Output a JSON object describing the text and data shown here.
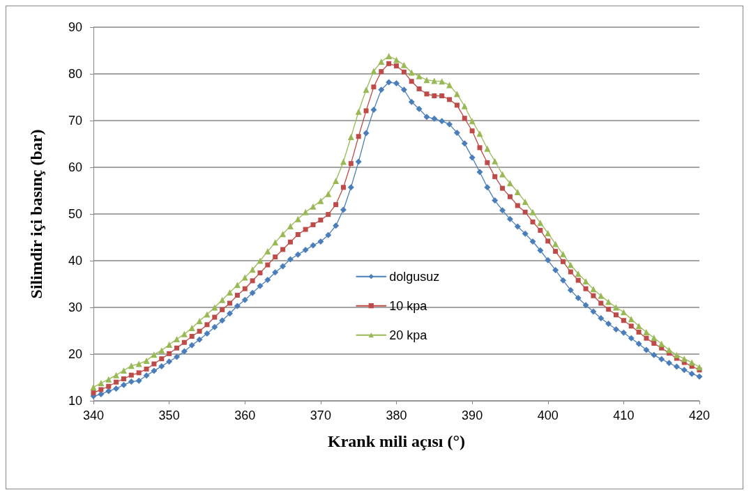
{
  "chart_data": {
    "type": "line",
    "xlabel": "Krank mili açısı (°)",
    "ylabel": "Silimdir içi basınç (bar)",
    "x": [
      340,
      341,
      342,
      343,
      344,
      345,
      346,
      347,
      348,
      349,
      350,
      351,
      352,
      353,
      354,
      355,
      356,
      357,
      358,
      359,
      360,
      361,
      362,
      363,
      364,
      365,
      366,
      367,
      368,
      369,
      370,
      371,
      372,
      373,
      374,
      375,
      376,
      377,
      378,
      379,
      380,
      381,
      382,
      383,
      384,
      385,
      386,
      387,
      388,
      389,
      390,
      391,
      392,
      393,
      394,
      395,
      396,
      397,
      398,
      399,
      400,
      401,
      402,
      403,
      404,
      405,
      406,
      407,
      408,
      409,
      410,
      411,
      412,
      413,
      414,
      415,
      416,
      417,
      418,
      419,
      420
    ],
    "series": [
      {
        "name": "dolgusuz",
        "color": "#4a7ebb",
        "marker": "diamond",
        "values": [
          11.0,
          11.4,
          12.1,
          12.6,
          13.4,
          14.1,
          14.3,
          15.4,
          16.4,
          17.4,
          18.4,
          19.4,
          20.6,
          21.9,
          23.1,
          24.4,
          25.8,
          27.2,
          28.7,
          30.3,
          31.6,
          33.1,
          34.6,
          35.9,
          37.5,
          38.8,
          40.3,
          41.3,
          42.3,
          43.3,
          44.1,
          45.5,
          47.5,
          50.9,
          55.7,
          61.2,
          67.3,
          72.3,
          76.6,
          78.2,
          78.0,
          76.6,
          74.0,
          72.5,
          70.8,
          70.4,
          69.9,
          69.2,
          67.4,
          65.1,
          62.1,
          59.0,
          55.7,
          52.9,
          50.8,
          48.9,
          47.3,
          45.8,
          44.1,
          42.2,
          40.1,
          38.0,
          35.8,
          33.7,
          32.0,
          30.5,
          29.1,
          27.7,
          26.5,
          25.3,
          24.6,
          23.4,
          22.2,
          20.9,
          19.8,
          18.9,
          18.1,
          17.3,
          16.6,
          15.8,
          15.2
        ]
      },
      {
        "name": "10 kpa",
        "color": "#be4b48",
        "marker": "square",
        "values": [
          11.7,
          12.4,
          13.1,
          14.0,
          14.7,
          15.5,
          16.0,
          16.8,
          17.9,
          19.0,
          20.1,
          21.3,
          22.5,
          23.8,
          24.9,
          26.3,
          27.9,
          29.5,
          30.9,
          32.6,
          34.0,
          35.7,
          37.4,
          39.1,
          40.8,
          42.4,
          44.0,
          45.6,
          46.7,
          47.7,
          48.7,
          49.9,
          52.0,
          55.7,
          60.8,
          66.6,
          72.1,
          77.2,
          80.5,
          82.2,
          81.7,
          80.4,
          78.4,
          76.8,
          75.7,
          75.3,
          75.3,
          74.5,
          73.3,
          70.5,
          67.8,
          64.2,
          61.0,
          58.0,
          55.5,
          53.7,
          51.8,
          50.4,
          48.3,
          46.5,
          44.2,
          42.0,
          39.8,
          37.6,
          35.8,
          34.0,
          32.5,
          30.9,
          29.6,
          28.4,
          27.2,
          26.0,
          24.7,
          23.4,
          22.3,
          21.3,
          20.2,
          19.1,
          18.2,
          17.4,
          16.6
        ]
      },
      {
        "name": "20 kpa",
        "color": "#98b954",
        "marker": "triangle",
        "values": [
          12.9,
          13.8,
          14.6,
          15.5,
          16.5,
          17.5,
          17.9,
          18.6,
          19.9,
          20.8,
          22.0,
          23.2,
          24.3,
          25.6,
          27.1,
          28.5,
          30.0,
          31.6,
          33.2,
          34.8,
          36.4,
          38.1,
          40.0,
          42.0,
          43.9,
          45.7,
          47.4,
          48.9,
          50.4,
          51.6,
          52.8,
          54.3,
          57.1,
          61.2,
          66.5,
          71.9,
          76.6,
          80.6,
          82.6,
          83.8,
          83.0,
          81.9,
          80.3,
          79.5,
          78.7,
          78.5,
          78.4,
          77.6,
          75.7,
          73.1,
          69.9,
          67.2,
          64.0,
          61.3,
          58.5,
          56.6,
          54.7,
          52.6,
          50.4,
          48.1,
          45.9,
          43.6,
          41.4,
          39.1,
          37.2,
          35.6,
          33.9,
          32.5,
          31.2,
          30.0,
          29.0,
          27.5,
          26.0,
          24.7,
          23.5,
          22.2,
          20.9,
          19.8,
          19.0,
          18.2,
          17.2
        ]
      }
    ],
    "xlim": [
      340,
      420
    ],
    "xticks": [
      340,
      350,
      360,
      370,
      380,
      390,
      400,
      410,
      420
    ],
    "ylim": [
      10,
      90
    ],
    "yticks": [
      10,
      20,
      30,
      40,
      50,
      60,
      70,
      80,
      90
    ],
    "grid": "y",
    "legend": "center",
    "line_style": "solid"
  }
}
